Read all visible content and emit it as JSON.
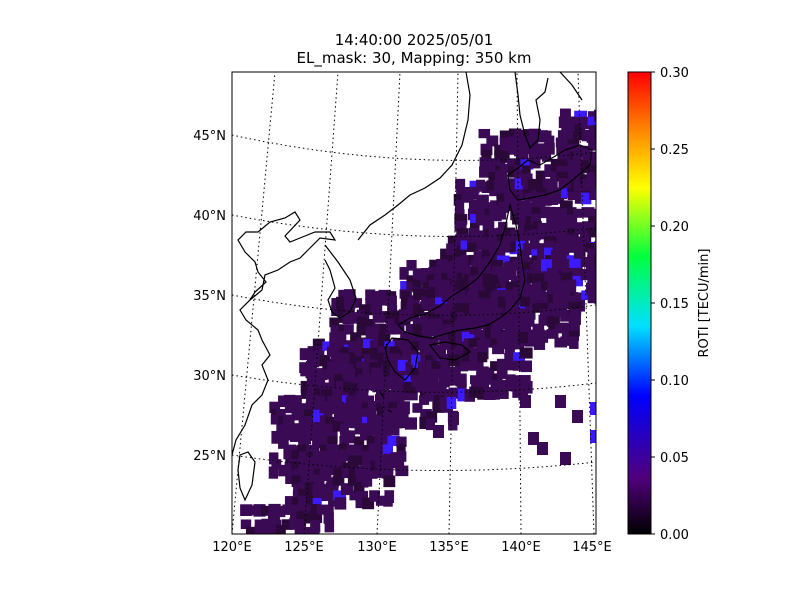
{
  "title": {
    "line1": "14:40:00 2025/05/01",
    "line2": "EL_mask: 30, Mapping: 350 km"
  },
  "map": {
    "lat_labels": [
      "45°N",
      "40°N",
      "35°N",
      "30°N",
      "25°N"
    ],
    "lon_labels": [
      "120°E",
      "125°E",
      "130°E",
      "135°E",
      "140°E",
      "145°E"
    ],
    "lon_range": [
      120,
      145
    ],
    "lat_range": [
      20,
      49
    ],
    "graticule": "dotted",
    "coastline_color": "#000000"
  },
  "colorbar": {
    "label": "ROTI [TECU/min]",
    "ticks": [
      "0.30",
      "0.25",
      "0.20",
      "0.15",
      "0.10",
      "0.05",
      "0.00"
    ],
    "range": [
      0.0,
      0.3
    ],
    "colormap": [
      "#000000",
      "#5a007a",
      "#0000ff",
      "#00ffff",
      "#00ff00",
      "#ffff00",
      "#ff0000"
    ]
  },
  "roti_points": {
    "typical_value": 0.03,
    "typical_color": "#3a0a55",
    "elevated_color": "#3b1aff"
  }
}
